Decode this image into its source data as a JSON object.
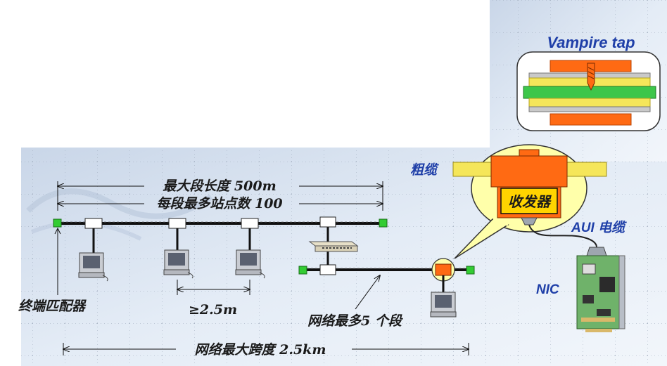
{
  "labels": {
    "vampire_tap": "Vampire tap",
    "thick_cable": "粗缆",
    "transceiver": "收发器",
    "aui_cable": "AUI 电缆",
    "nic": "NIC",
    "max_segment_length": "最大段长度 500m",
    "max_stations": "每段最多站点数 100",
    "terminator": "终端匹配器",
    "min_spacing": "≥2.5m",
    "max_segments": "网络最多5 个段",
    "max_span": "网络最大跨度 2.5km"
  },
  "colors": {
    "background_panel": "#dfe8f4",
    "tap_orange": "#ff6a13",
    "cable_yellow": "#f5e65a",
    "callout_yellow": "#ffffaa",
    "terminator_green": "#33cc33",
    "label_blue": "#1f3fa8",
    "nic_green": "#6fb26a"
  }
}
